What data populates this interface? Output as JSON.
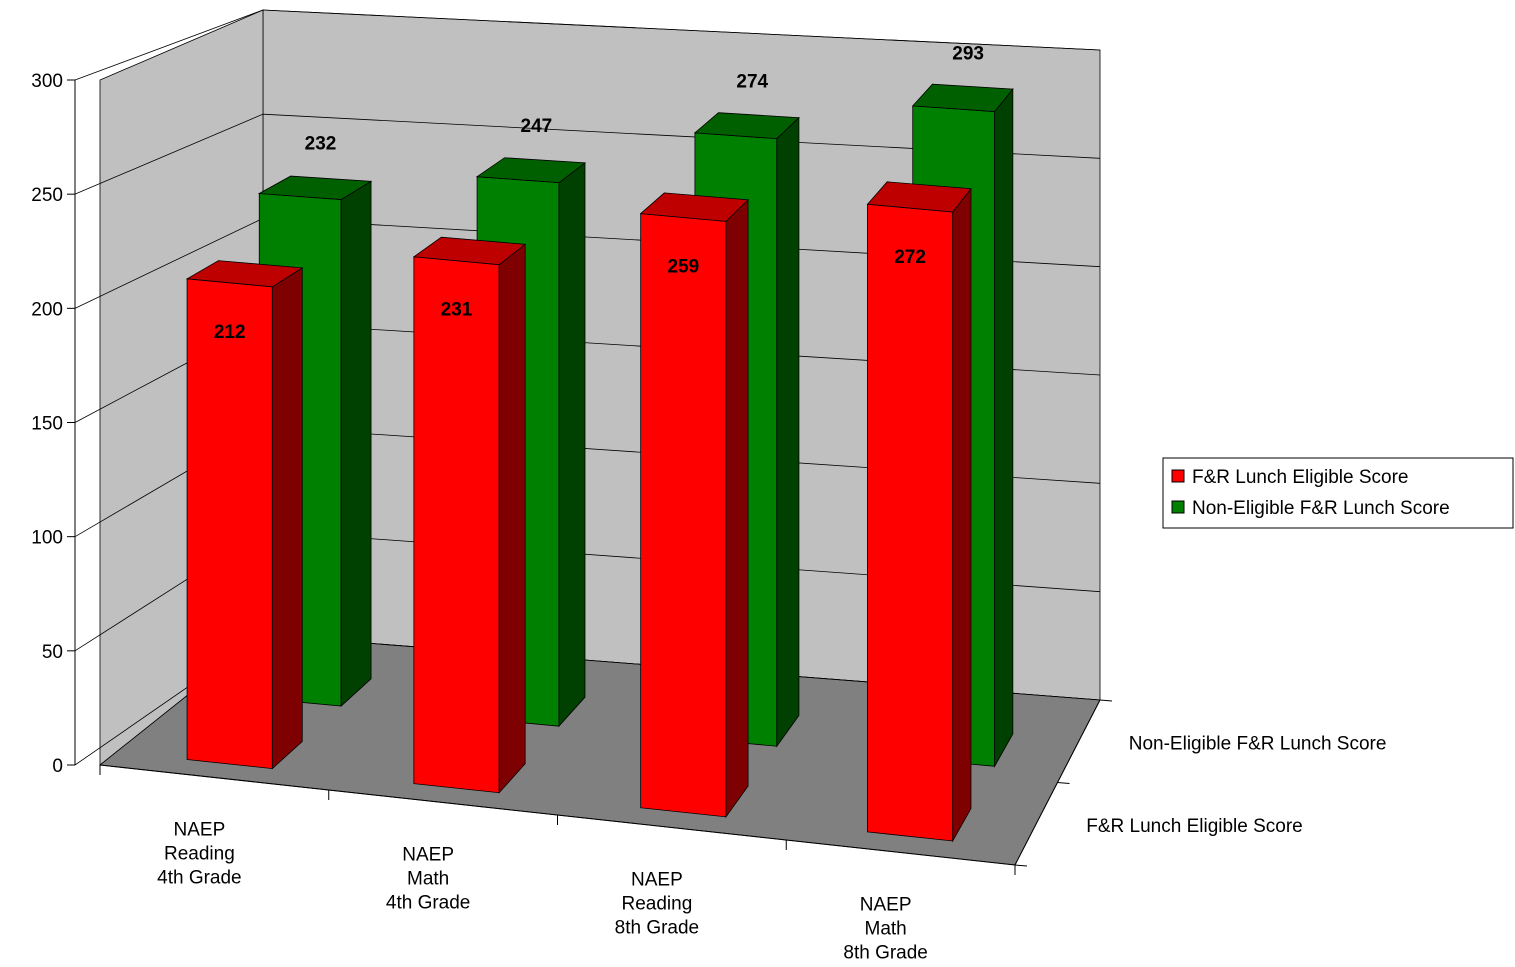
{
  "chart_data": {
    "type": "bar3d",
    "categories": [
      "NAEP\nReading\n4th Grade",
      "NAEP\nMath\n4th Grade",
      "NAEP\nReading\n8th Grade",
      "NAEP\nMath\n8th Grade"
    ],
    "series": [
      {
        "name": "F&R Lunch Eligible Score",
        "color": "#ff0000",
        "values": [
          212,
          231,
          259,
          272
        ]
      },
      {
        "name": "Non-Eligible F&R Lunch Score",
        "color": "#008000",
        "values": [
          232,
          247,
          274,
          293
        ]
      }
    ],
    "ylim": [
      0,
      300
    ],
    "yticks": [
      0,
      50,
      100,
      150,
      200,
      250,
      300
    ],
    "grid": true,
    "legend": "right"
  }
}
